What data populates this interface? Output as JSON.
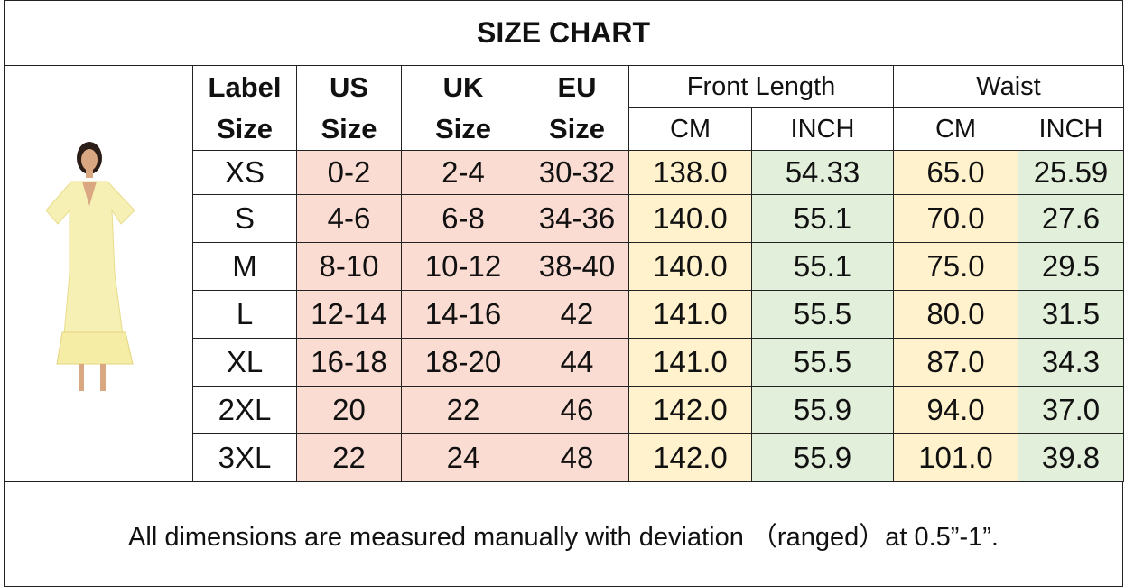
{
  "title": "SIZE CHART",
  "table": {
    "headers": [
      "Label Size",
      "US Size",
      "UK Size",
      "EU Size"
    ],
    "groups": [
      "Front Length",
      "Waist"
    ],
    "subheaders": [
      "CM",
      "INCH",
      "CM",
      "INCH"
    ],
    "rows": [
      [
        "XS",
        "0-2",
        "2-4",
        "30-32",
        "138.0",
        "54.33",
        "65.0",
        "25.59"
      ],
      [
        "S",
        "4-6",
        "6-8",
        "34-36",
        "140.0",
        "55.1",
        "70.0",
        "27.6"
      ],
      [
        "M",
        "8-10",
        "10-12",
        "38-40",
        "140.0",
        "55.1",
        "75.0",
        "29.5"
      ],
      [
        "L",
        "12-14",
        "14-16",
        "42",
        "141.0",
        "55.5",
        "80.0",
        "31.5"
      ],
      [
        "XL",
        "16-18",
        "18-20",
        "44",
        "141.0",
        "55.5",
        "87.0",
        "34.3"
      ],
      [
        "2XL",
        "20",
        "22",
        "46",
        "142.0",
        "55.9",
        "94.0",
        "37.0"
      ],
      [
        "3XL",
        "22",
        "24",
        "48",
        "142.0",
        "55.9",
        "101.0",
        "39.8"
      ]
    ]
  },
  "note": "All dimensions are measured manually with deviation （ranged）at 0.5”-1”."
}
